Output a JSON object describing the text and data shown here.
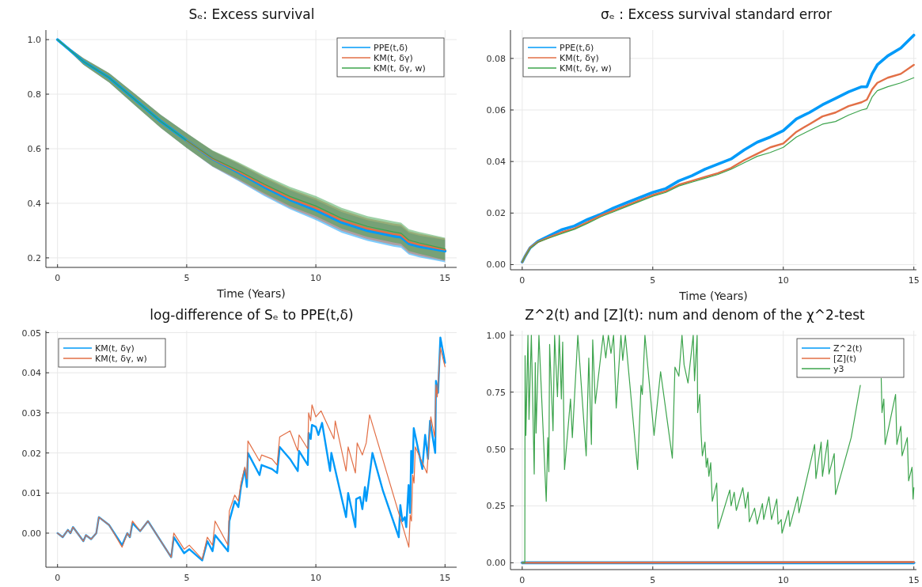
{
  "chart_data": [
    {
      "type": "line",
      "title": "Sₑ: Excess survival",
      "xlabel": "Time (Years)",
      "x": [
        0,
        1,
        2,
        3,
        4,
        5,
        6,
        7,
        8,
        9,
        10,
        11,
        12,
        13,
        13.3,
        13.6,
        14,
        15
      ],
      "xlim": [
        -0.45,
        15.45
      ],
      "ylim": [
        0.165,
        1.035
      ],
      "xticks": [
        0,
        5,
        10,
        15
      ],
      "yticks": [
        0.2,
        0.4,
        0.6,
        0.8,
        {
          "value": 1,
          "label": "1.0"
        }
      ],
      "grid": true,
      "legend": "top right",
      "series": [
        {
          "name": "PPE(t,δ)",
          "color": "#009af9",
          "values": [
            1.0,
            0.92,
            0.86,
            0.78,
            0.7,
            0.63,
            0.563,
            0.513,
            0.46,
            0.413,
            0.375,
            0.33,
            0.3,
            0.28,
            0.276,
            0.252,
            0.242,
            0.225
          ],
          "lower": [
            1.0,
            0.908,
            0.843,
            0.759,
            0.676,
            0.603,
            0.534,
            0.482,
            0.427,
            0.378,
            0.338,
            0.292,
            0.262,
            0.241,
            0.237,
            0.212,
            0.202,
            0.184
          ],
          "upper": [
            1.0,
            0.932,
            0.877,
            0.801,
            0.724,
            0.657,
            0.592,
            0.544,
            0.493,
            0.448,
            0.412,
            0.368,
            0.338,
            0.319,
            0.315,
            0.292,
            0.282,
            0.266
          ]
        },
        {
          "name": "KM(t, δγ)",
          "color": "#e26f46",
          "values": [
            null,
            null,
            null,
            null,
            null,
            0.63,
            0.564,
            0.516,
            0.465,
            0.418,
            0.382,
            0.337,
            0.307,
            0.287,
            0.283,
            0.258,
            0.248,
            0.23
          ],
          "lower": [
            1.0,
            0.908,
            0.843,
            0.759,
            0.676,
            0.603,
            0.535,
            0.485,
            0.432,
            0.383,
            0.345,
            0.299,
            0.269,
            0.248,
            0.244,
            0.218,
            0.208,
            0.189
          ],
          "upper": [
            1.0,
            0.932,
            0.877,
            0.801,
            0.724,
            0.657,
            0.593,
            0.547,
            0.498,
            0.453,
            0.419,
            0.375,
            0.345,
            0.326,
            0.322,
            0.298,
            0.288,
            0.271
          ]
        },
        {
          "name": "KM(t, δγ, w)",
          "color": "#3da44d",
          "values": [
            1.0,
            0.92,
            0.86,
            0.78,
            0.7,
            0.63,
            0.565,
            0.52,
            0.47,
            0.425,
            0.39,
            0.345,
            0.315,
            0.295,
            0.29,
            0.265,
            0.255,
            0.233
          ],
          "lower": [
            1.0,
            0.908,
            0.843,
            0.759,
            0.676,
            0.603,
            0.536,
            0.489,
            0.437,
            0.39,
            0.353,
            0.307,
            0.277,
            0.256,
            0.251,
            0.225,
            0.215,
            0.192
          ],
          "upper": [
            1.0,
            0.932,
            0.877,
            0.801,
            0.724,
            0.657,
            0.594,
            0.551,
            0.503,
            0.46,
            0.427,
            0.383,
            0.353,
            0.334,
            0.329,
            0.305,
            0.295,
            0.274
          ]
        }
      ]
    },
    {
      "type": "line",
      "title": "σₑ : Excess survival standard error",
      "xlabel": "Time (Years)",
      "x": [
        0,
        0.1,
        0.3,
        0.6,
        1,
        1.5,
        2,
        2.5,
        3,
        3.5,
        4,
        4.5,
        5,
        5.5,
        6,
        6.5,
        7,
        7.5,
        8,
        8.5,
        9,
        9.5,
        10,
        10.5,
        11,
        11.5,
        12,
        12.5,
        13,
        13.2,
        13.4,
        13.6,
        14,
        14.5,
        15
      ],
      "xlim": [
        -0.45,
        15.1
      ],
      "ylim": [
        -0.002,
        0.091
      ],
      "xticks": [
        0,
        5,
        10,
        15
      ],
      "yticks": [
        {
          "value": 0,
          "label": "0.00"
        },
        0.02,
        0.04,
        0.06,
        0.08
      ],
      "grid": true,
      "legend": "top left",
      "series": [
        {
          "name": "PPE(t,δ)",
          "color": "#009af9",
          "values": [
            0.001,
            0.003,
            0.0065,
            0.009,
            0.011,
            0.0135,
            0.015,
            0.0175,
            0.0195,
            0.022,
            0.024,
            0.026,
            0.028,
            0.0295,
            0.0325,
            0.0345,
            0.037,
            0.039,
            0.041,
            0.0445,
            0.0475,
            0.0495,
            0.052,
            0.0565,
            0.059,
            0.062,
            0.0645,
            0.067,
            0.069,
            0.069,
            0.074,
            0.0775,
            0.081,
            0.084,
            0.089
          ]
        },
        {
          "name": "KM(t, δγ)",
          "color": "#e26f46",
          "values": [
            0.001,
            0.003,
            0.0065,
            0.0088,
            0.0105,
            0.0125,
            0.014,
            0.0165,
            0.019,
            0.021,
            0.023,
            0.025,
            0.027,
            0.0285,
            0.031,
            0.0325,
            0.034,
            0.0355,
            0.0375,
            0.0405,
            0.043,
            0.0455,
            0.047,
            0.0515,
            0.0545,
            0.0575,
            0.059,
            0.0615,
            0.063,
            0.064,
            0.068,
            0.0705,
            0.0725,
            0.074,
            0.0775
          ]
        },
        {
          "name": "KM(t, δγ, w)",
          "color": "#3da44d",
          "values": [
            0.001,
            0.003,
            0.0063,
            0.0087,
            0.0102,
            0.012,
            0.0137,
            0.016,
            0.0185,
            0.0205,
            0.0225,
            0.0245,
            0.0265,
            0.028,
            0.0305,
            0.032,
            0.0335,
            0.035,
            0.037,
            0.0395,
            0.042,
            0.0435,
            0.0455,
            0.0495,
            0.052,
            0.0545,
            0.0555,
            0.058,
            0.06,
            0.0605,
            0.065,
            0.0675,
            0.069,
            0.0705,
            0.0725
          ]
        }
      ]
    },
    {
      "type": "line",
      "title": "log-difference of Sₑ to PPE(t,δ)",
      "xlim": [
        -0.45,
        15.45
      ],
      "ylim": [
        -0.0085,
        0.0505
      ],
      "xticks": [
        0,
        5,
        10,
        15
      ],
      "yticks": [
        {
          "value": 0,
          "label": "0.00"
        },
        0.01,
        0.02,
        0.03,
        0.04,
        0.05
      ],
      "grid": true,
      "legend": "top left",
      "series": [
        {
          "name": "KM(t, δγ)",
          "color": "#009af9",
          "x": [
            0,
            0.2,
            0.4,
            0.5,
            0.6,
            1.0,
            1.1,
            1.3,
            1.5,
            1.6,
            2.0,
            2.5,
            2.7,
            2.8,
            2.9,
            3.2,
            3.5,
            4.4,
            4.5,
            4.9,
            5.1,
            5.6,
            5.8,
            6.0,
            6.1,
            6.6,
            6.65,
            6.86,
            7.0,
            7.1,
            7.25,
            7.33,
            7.37,
            7.82,
            7.9,
            8.3,
            8.5,
            8.6,
            9.0,
            9.3,
            9.35,
            9.69,
            9.72,
            9.8,
            9.85,
            10.0,
            10.1,
            10.24,
            10.55,
            10.6,
            11.17,
            11.25,
            11.53,
            11.56,
            11.71,
            11.8,
            11.9,
            11.95,
            12.19,
            12.6,
            13.21,
            13.27,
            13.35,
            13.44,
            13.5,
            13.59,
            13.65,
            13.69,
            13.74,
            13.79,
            14.12,
            14.23,
            14.34,
            14.42,
            14.62,
            14.65,
            14.73,
            14.82,
            15.0
          ],
          "values": [
            0,
            -0.001,
            0.0008,
            0.0,
            0.0015,
            -0.002,
            -0.0005,
            -0.0015,
            0.0,
            0.004,
            0.002,
            -0.003,
            0.0,
            -0.001,
            0.0025,
            0.0005,
            0.003,
            -0.006,
            -0.001,
            -0.005,
            -0.004,
            -0.0068,
            -0.002,
            -0.0045,
            -0.0005,
            -0.0045,
            0.003,
            0.008,
            0.0065,
            0.0115,
            0.016,
            0.0115,
            0.02,
            0.0145,
            0.017,
            0.016,
            0.015,
            0.0215,
            0.0185,
            0.0155,
            0.0205,
            0.017,
            0.025,
            0.0235,
            0.027,
            0.0265,
            0.0245,
            0.0275,
            0.0155,
            0.02,
            0.004,
            0.01,
            0.0015,
            0.0085,
            0.009,
            0.006,
            0.0115,
            0.008,
            0.02,
            0.0105,
            -0.001,
            0.007,
            0.003,
            0.004,
            0.0015,
            0.012,
            0.005,
            0.0205,
            0.015,
            0.0262,
            0.016,
            0.0245,
            0.0185,
            0.028,
            0.02,
            0.038,
            0.035,
            0.0488,
            0.0425
          ]
        },
        {
          "name": "KM(t, δγ, w)",
          "color": "#e26f46",
          "x": [
            0,
            0.2,
            0.4,
            0.5,
            0.6,
            1.0,
            1.1,
            1.3,
            1.5,
            1.6,
            2.0,
            2.5,
            2.7,
            2.8,
            2.9,
            3.2,
            3.5,
            4.4,
            4.5,
            4.9,
            5.1,
            5.6,
            5.8,
            6.0,
            6.1,
            6.6,
            6.65,
            6.86,
            7.0,
            7.1,
            7.25,
            7.33,
            7.37,
            7.82,
            7.9,
            8.3,
            8.5,
            8.6,
            9.0,
            9.3,
            9.35,
            9.69,
            9.72,
            9.8,
            9.85,
            10.0,
            10.2,
            10.7,
            10.75,
            11.17,
            11.25,
            11.53,
            11.6,
            11.8,
            11.95,
            12.08,
            13.6,
            13.65,
            13.7,
            13.75,
            13.8,
            13.85,
            14.3,
            14.45,
            14.6,
            14.65,
            14.7,
            14.82,
            15.0
          ],
          "values": [
            0,
            -0.001,
            0.0008,
            0.0,
            0.0015,
            -0.002,
            -0.0005,
            -0.0015,
            0.0,
            0.004,
            0.002,
            -0.0035,
            0.0,
            -0.001,
            0.003,
            0.0005,
            0.003,
            -0.006,
            0.0,
            -0.004,
            -0.003,
            -0.0065,
            -0.001,
            -0.003,
            0.003,
            -0.003,
            0.0055,
            0.0095,
            0.008,
            0.0125,
            0.0165,
            0.0135,
            0.023,
            0.018,
            0.0195,
            0.0185,
            0.017,
            0.024,
            0.0255,
            0.0205,
            0.0245,
            0.021,
            0.03,
            0.028,
            0.032,
            0.029,
            0.0305,
            0.0235,
            0.028,
            0.0155,
            0.0215,
            0.015,
            0.0225,
            0.0195,
            0.0225,
            0.0295,
            -0.0035,
            0.0045,
            0.003,
            0.0145,
            0.0125,
            0.0215,
            0.015,
            0.029,
            0.024,
            0.037,
            0.034,
            0.0462,
            0.0415
          ]
        }
      ]
    },
    {
      "type": "line",
      "title": "Z^2(t) and [Z](t): num and denom of the χ^2-test",
      "xlim": [
        -0.45,
        15.1
      ],
      "ylim": [
        -0.03,
        1.02
      ],
      "xticks": [
        0,
        5,
        10,
        15
      ],
      "yticks": [
        {
          "value": 0,
          "label": "0.00"
        },
        0.25,
        {
          "value": 0.5,
          "label": "0.50"
        },
        0.75,
        {
          "value": 1,
          "label": "1.00"
        }
      ],
      "grid": true,
      "legend": "top right",
      "series": [
        {
          "name": "Z^2(t)",
          "color": "#009af9",
          "x": [
            0,
            15
          ],
          "values": [
            0,
            0
          ]
        },
        {
          "name": "[Z](t)",
          "color": "#e26f46",
          "x": [
            0,
            15
          ],
          "values": [
            0,
            0.003
          ]
        },
        {
          "name": "y3",
          "color": "#3da44d",
          "x": [
            0,
            0.1,
            0.11,
            0.14,
            0.22,
            0.26,
            0.35,
            0.46,
            0.5,
            0.53,
            0.64,
            0.92,
            0.98,
            1.02,
            1.05,
            1.18,
            1.24,
            1.35,
            1.42,
            1.5,
            1.55,
            1.62,
            1.85,
            1.92,
            2.13,
            2.45,
            2.55,
            2.65,
            2.7,
            2.8,
            3.1,
            3.2,
            3.3,
            3.4,
            3.5,
            3.6,
            3.78,
            3.85,
            3.95,
            4.42,
            4.55,
            4.6,
            4.7,
            5.05,
            5.3,
            5.75,
            5.85,
            6.0,
            6.12,
            6.2,
            6.35,
            6.55,
            6.6,
            6.7,
            6.72,
            6.8,
            6.85,
            6.9,
            7.0,
            7.05,
            7.1,
            7.15,
            7.22,
            7.28,
            7.45,
            7.5,
            7.95,
            8.0,
            8.12,
            8.2,
            8.45,
            8.55,
            8.65,
            8.7,
            8.9,
            9.0,
            9.2,
            9.25,
            9.45,
            9.55,
            9.75,
            9.8,
            9.92,
            9.95,
            10.2,
            10.25,
            10.55,
            10.6,
            11.2,
            11.25,
            11.45,
            11.5,
            11.7,
            11.75,
            11.95,
            12.0,
            12.6,
            12.95,
            13.1,
            13.75,
            13.78,
            13.85,
            13.9,
            14.3,
            14.35,
            14.5,
            14.55,
            14.75,
            14.8,
            14.93,
            14.97,
            15.0
          ],
          "values": [
            0,
            0,
            0.91,
            0.56,
            1.0,
            0.63,
            1.0,
            0.39,
            0.88,
            0.57,
            1.0,
            0.27,
            0.55,
            0.4,
            0.96,
            0.58,
            1.0,
            0.73,
            1.0,
            0.72,
            0.97,
            0.41,
            0.72,
            0.55,
            1.0,
            0.47,
            0.9,
            0.52,
            0.98,
            0.7,
            1.0,
            0.9,
            1.0,
            0.92,
            1.0,
            0.68,
            1.0,
            0.89,
            1.0,
            0.41,
            0.78,
            0.74,
            1.0,
            0.56,
            0.84,
            0.46,
            0.86,
            0.82,
            1.0,
            0.87,
            0.79,
            1.0,
            0.8,
            1.0,
            0.66,
            0.74,
            0.57,
            0.47,
            0.53,
            0.42,
            0.46,
            0.38,
            0.44,
            0.27,
            0.35,
            0.15,
            0.32,
            0.25,
            0.31,
            0.23,
            0.33,
            0.24,
            0.31,
            0.18,
            0.24,
            0.17,
            0.26,
            0.19,
            0.29,
            0.19,
            0.28,
            0.17,
            0.19,
            0.13,
            0.23,
            0.16,
            0.29,
            0.22,
            0.52,
            0.37,
            0.53,
            0.38,
            0.54,
            0.39,
            0.48,
            0.3,
            0.55,
            0.78,
            null,
            0.81,
            0.66,
            0.72,
            0.52,
            0.74,
            0.52,
            0.6,
            0.47,
            0.55,
            0.36,
            0.42,
            0.28,
            0.33
          ]
        }
      ]
    }
  ]
}
